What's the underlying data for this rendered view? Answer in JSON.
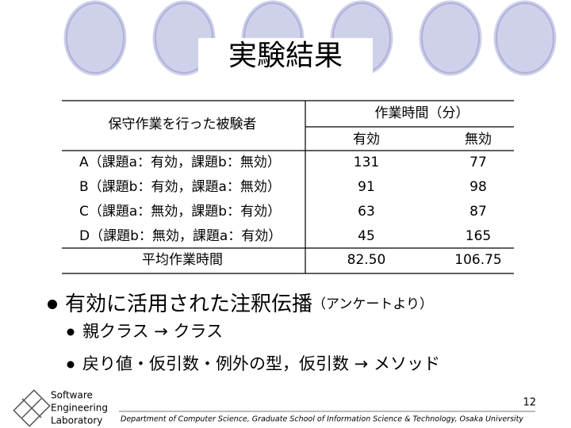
{
  "title": "実験結果",
  "table": {
    "header": {
      "subject": "保守作業を行った被験者",
      "time": "作業時間（分）",
      "valid": "有効",
      "invalid": "無効"
    },
    "rows": [
      [
        "A（課題a：有効，課題b：無効）",
        "131",
        "77"
      ],
      [
        "B（課題b：有効，課題a：無効）",
        "91",
        "98"
      ],
      [
        "C（課題a：無効，課題b：有効）",
        "63",
        "87"
      ],
      [
        "D（課題b：無効，課題a：有効）",
        "45",
        "165"
      ],
      [
        "平均作業時間",
        "82.50",
        "106.75"
      ]
    ]
  },
  "bullets": [
    {
      "text": "有効に活用された注釈伝播",
      "note": "（アンケートより）",
      "items": [
        "親クラス → クラス",
        "戻り値・仮引数・例外の型，仮引数 → メソッド"
      ]
    }
  ],
  "footer": {
    "logo": [
      "Software",
      "Engineering",
      "Laboratory"
    ],
    "department": "Department of Computer Science, Graduate School of Information Science & Technology, Osaka University",
    "page": "12"
  }
}
